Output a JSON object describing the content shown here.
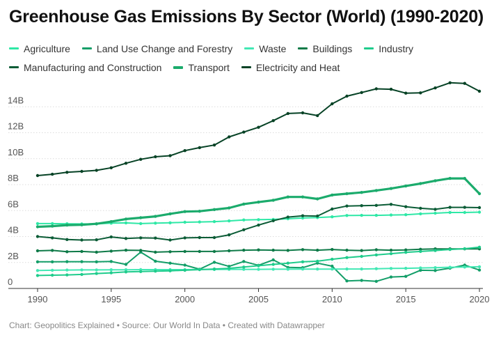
{
  "chart_data": {
    "type": "line",
    "title": "Greenhouse Gas Emissions By Sector (World) (1990-2020)",
    "x": [
      1990,
      1991,
      1992,
      1993,
      1994,
      1995,
      1996,
      1997,
      1998,
      1999,
      2000,
      2001,
      2002,
      2003,
      2004,
      2005,
      2006,
      2007,
      2008,
      2009,
      2010,
      2011,
      2012,
      2013,
      2014,
      2015,
      2016,
      2017,
      2018,
      2019,
      2020
    ],
    "x_ticks": [
      "1990",
      "1995",
      "2000",
      "2005",
      "2010",
      "2015",
      "2020"
    ],
    "y_ticks": [
      "0",
      "2B",
      "4B",
      "6B",
      "8B",
      "10B",
      "12B",
      "14B"
    ],
    "ylim": [
      0,
      16
    ],
    "grid": true,
    "legend_position": "top",
    "series": [
      {
        "name": "Agriculture",
        "color": "#2ee8a6",
        "values": [
          5.0,
          5.0,
          4.98,
          4.97,
          4.97,
          5.03,
          5.05,
          5.0,
          5.03,
          5.06,
          5.1,
          5.12,
          5.15,
          5.2,
          5.28,
          5.3,
          5.32,
          5.37,
          5.43,
          5.46,
          5.52,
          5.62,
          5.63,
          5.63,
          5.66,
          5.68,
          5.75,
          5.8,
          5.85,
          5.85,
          5.88
        ]
      },
      {
        "name": "Land Use Change and Forestry",
        "color": "#139e68",
        "values": [
          2.05,
          2.05,
          2.06,
          2.06,
          2.05,
          2.08,
          1.85,
          2.8,
          2.1,
          1.95,
          1.8,
          1.48,
          2.02,
          1.7,
          2.08,
          1.78,
          2.2,
          1.62,
          1.6,
          1.95,
          1.72,
          0.58,
          0.62,
          0.55,
          0.88,
          0.93,
          1.4,
          1.38,
          1.56,
          1.8,
          1.42
        ]
      },
      {
        "name": "Waste",
        "color": "#42e8b4",
        "values": [
          1.38,
          1.4,
          1.42,
          1.43,
          1.43,
          1.44,
          1.44,
          1.45,
          1.45,
          1.45,
          1.45,
          1.46,
          1.46,
          1.47,
          1.47,
          1.47,
          1.48,
          1.48,
          1.49,
          1.49,
          1.49,
          1.5,
          1.5,
          1.52,
          1.54,
          1.55,
          1.58,
          1.6,
          1.63,
          1.65,
          1.67
        ]
      },
      {
        "name": "Buildings",
        "color": "#0e7a48",
        "values": [
          2.9,
          2.93,
          2.83,
          2.85,
          2.8,
          2.88,
          2.95,
          2.93,
          2.8,
          2.83,
          2.85,
          2.85,
          2.85,
          2.9,
          2.95,
          2.97,
          2.95,
          2.93,
          2.99,
          2.95,
          3.0,
          2.95,
          2.92,
          2.98,
          2.95,
          2.97,
          3.02,
          3.05,
          3.05,
          3.05,
          3.05
        ]
      },
      {
        "name": "Industry",
        "color": "#1fcc8c",
        "values": [
          1.0,
          1.02,
          1.04,
          1.08,
          1.15,
          1.2,
          1.27,
          1.3,
          1.33,
          1.36,
          1.4,
          1.45,
          1.5,
          1.55,
          1.65,
          1.75,
          1.85,
          1.95,
          2.05,
          2.1,
          2.25,
          2.38,
          2.47,
          2.58,
          2.68,
          2.78,
          2.85,
          2.92,
          3.0,
          3.06,
          3.18
        ]
      },
      {
        "name": "Manufacturing and Construction",
        "color": "#0b5c36",
        "values": [
          4.0,
          3.9,
          3.77,
          3.73,
          3.75,
          3.97,
          3.85,
          3.9,
          3.88,
          3.73,
          3.9,
          3.92,
          3.92,
          4.13,
          4.52,
          4.88,
          5.22,
          5.5,
          5.6,
          5.58,
          6.12,
          6.35,
          6.38,
          6.4,
          6.48,
          6.3,
          6.18,
          6.1,
          6.25,
          6.25,
          6.23
        ]
      },
      {
        "name": "Transport",
        "color": "#1bab6c",
        "values": [
          4.75,
          4.8,
          4.88,
          4.9,
          4.98,
          5.15,
          5.35,
          5.45,
          5.55,
          5.75,
          5.92,
          5.95,
          6.08,
          6.2,
          6.5,
          6.65,
          6.8,
          7.05,
          7.05,
          6.9,
          7.2,
          7.3,
          7.4,
          7.55,
          7.7,
          7.9,
          8.08,
          8.3,
          8.48,
          8.48,
          7.3
        ]
      },
      {
        "name": "Electricity and Heat",
        "color": "#064225",
        "values": [
          8.7,
          8.8,
          8.95,
          9.02,
          9.1,
          9.3,
          9.65,
          9.95,
          10.15,
          10.23,
          10.62,
          10.85,
          11.05,
          11.68,
          12.05,
          12.42,
          12.93,
          13.48,
          13.53,
          13.32,
          14.23,
          14.82,
          15.1,
          15.38,
          15.35,
          15.05,
          15.07,
          15.45,
          15.85,
          15.8,
          15.2
        ]
      }
    ]
  },
  "legend_rows": [
    [
      0,
      1,
      2,
      3,
      4
    ],
    [
      5,
      6,
      7
    ]
  ],
  "footer": "Chart: Geopolitics Explained • Source: Our World In Data • Created with Datawrapper"
}
